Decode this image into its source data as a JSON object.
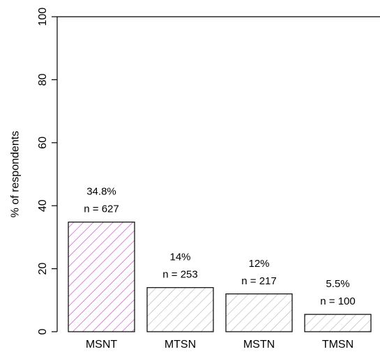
{
  "chart_data": {
    "type": "bar",
    "title": "",
    "xlabel": "",
    "ylabel": "% of respondents",
    "ylim": [
      0,
      100
    ],
    "yticks": [
      0,
      20,
      40,
      60,
      80,
      100
    ],
    "grid": false,
    "categories": [
      "MSNT",
      "MTSN",
      "MSTN",
      "TMSN"
    ],
    "values": [
      34.8,
      14,
      12,
      5.5
    ],
    "value_labels": [
      "34.8%",
      "14%",
      "12%",
      "5.5%"
    ],
    "n_labels": [
      "n = 627",
      "n = 253",
      "n = 217",
      "n = 100"
    ],
    "bar_fill": "hatched",
    "colors": {
      "highlight_hatch": "#cc33cc",
      "highlight_border": "#000000",
      "default_hatch": "#b0b0b0",
      "default_border": "#000000"
    },
    "highlight_index": 0
  }
}
